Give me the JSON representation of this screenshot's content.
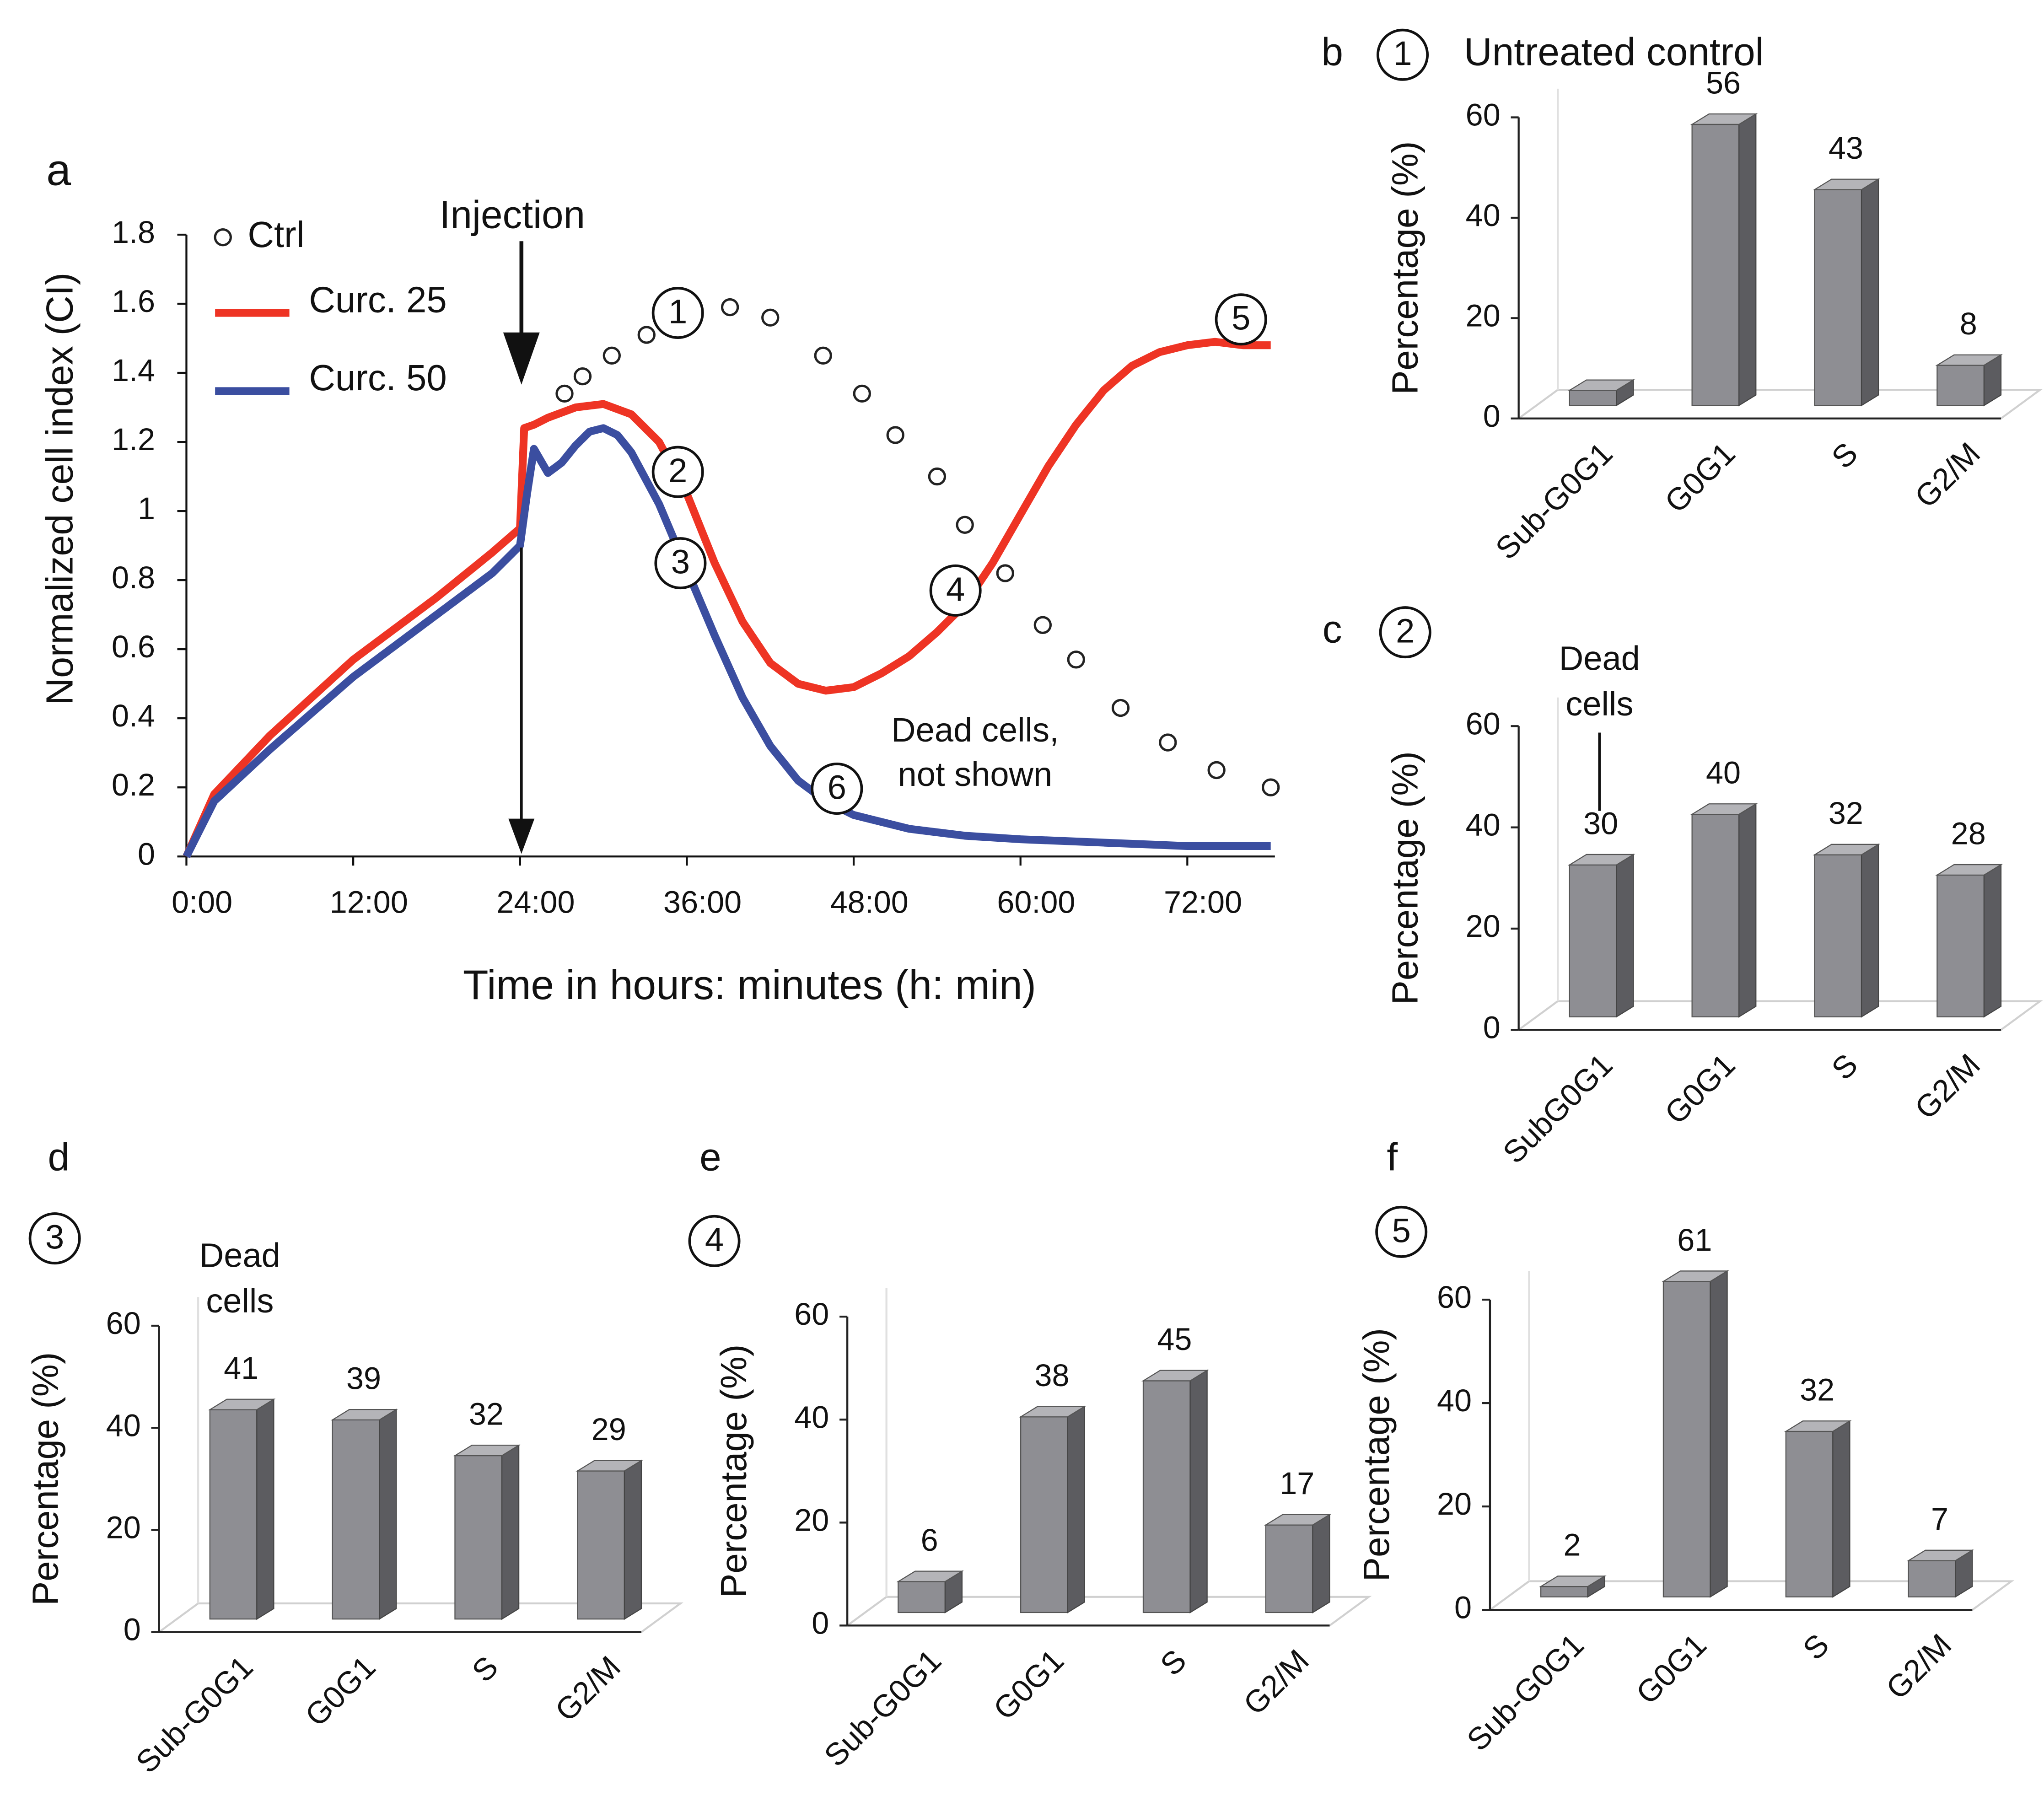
{
  "chart_data": [
    {
      "type": "line",
      "panel": "a",
      "xlabel": "Time in hours: minutes (h: min)",
      "ylabel": "Normalized cell index (CI)",
      "xlim": [
        0,
        78.3
      ],
      "ylim": [
        0,
        1.8
      ],
      "xticks": [
        {
          "value": 0,
          "label": "0:00"
        },
        {
          "value": 12,
          "label": "12:00"
        },
        {
          "value": 24,
          "label": "24:00"
        },
        {
          "value": 36,
          "label": "36:00"
        },
        {
          "value": 48,
          "label": "48:00"
        },
        {
          "value": 60,
          "label": "60:00"
        },
        {
          "value": 72,
          "label": "72:00"
        }
      ],
      "yticks": [
        0,
        0.2,
        0.4,
        0.6,
        0.8,
        1,
        1.2,
        1.4,
        1.6,
        1.8
      ],
      "legend": "upper left",
      "series": [
        {
          "name": "Ctrl",
          "color": "#222222",
          "marker": "circle-open",
          "x": [
            27.2,
            28.5,
            30.6,
            33.1,
            39.1,
            42.0,
            45.8,
            48.6,
            51.0,
            54.0,
            56.0,
            58.9,
            61.6,
            64.0,
            67.2,
            70.6,
            74.1,
            78.0
          ],
          "values": [
            1.34,
            1.39,
            1.45,
            1.51,
            1.59,
            1.56,
            1.45,
            1.34,
            1.22,
            1.1,
            0.96,
            0.82,
            0.67,
            0.57,
            0.43,
            0.33,
            0.25,
            0.2
          ]
        },
        {
          "name": "Curc. 25",
          "color": "#ee3424",
          "x": [
            0,
            2,
            6,
            12,
            18,
            22,
            24,
            24.3,
            25,
            26,
            28,
            30,
            32,
            34,
            36,
            38,
            40,
            42,
            44,
            46,
            48,
            50,
            52,
            54,
            56,
            58,
            60,
            62,
            64,
            66,
            68,
            70,
            72,
            74,
            76,
            78
          ],
          "values": [
            0,
            0.18,
            0.35,
            0.57,
            0.75,
            0.88,
            0.95,
            1.24,
            1.25,
            1.27,
            1.3,
            1.31,
            1.28,
            1.2,
            1.05,
            0.85,
            0.68,
            0.56,
            0.5,
            0.48,
            0.49,
            0.53,
            0.58,
            0.65,
            0.73,
            0.85,
            0.99,
            1.13,
            1.25,
            1.35,
            1.42,
            1.46,
            1.48,
            1.49,
            1.48,
            1.48
          ]
        },
        {
          "name": "Curc. 50",
          "color": "#3b4ea0",
          "x": [
            0,
            2,
            6,
            12,
            18,
            22,
            24,
            24.5,
            25,
            26,
            27,
            28,
            29,
            30,
            31,
            32,
            34,
            36,
            38,
            40,
            42,
            44,
            46,
            48,
            52,
            56,
            60,
            66,
            72,
            78
          ],
          "values": [
            0,
            0.16,
            0.31,
            0.52,
            0.7,
            0.82,
            0.9,
            1.05,
            1.18,
            1.11,
            1.14,
            1.19,
            1.23,
            1.24,
            1.22,
            1.17,
            1.02,
            0.83,
            0.64,
            0.46,
            0.32,
            0.22,
            0.16,
            0.12,
            0.08,
            0.06,
            0.05,
            0.04,
            0.03,
            0.03
          ]
        }
      ],
      "injection": "Injection",
      "markers": [
        "1",
        "2",
        "3",
        "4",
        "5",
        "6"
      ],
      "annotation": [
        "Dead cells,",
        "not shown"
      ]
    },
    {
      "type": "bar3d",
      "panel": "b",
      "marker": "1",
      "title": "Untreated control",
      "ylabel": "Percentage (%)",
      "categories": [
        "Sub-G0G1",
        "G0G1",
        "S",
        "G2/M"
      ],
      "values": [
        3,
        56,
        43,
        8
      ],
      "labeled": [
        false,
        true,
        true,
        true
      ],
      "ylim": [
        0,
        60
      ],
      "yticks": [
        0,
        20,
        40,
        60
      ],
      "color": "#8e8e93"
    },
    {
      "type": "bar3d",
      "panel": "c",
      "marker": "2",
      "ylabel": "Percentage (%)",
      "annotation": [
        "Dead",
        "cells"
      ],
      "categories": [
        "SubG0G1",
        "G0G1",
        "S",
        "G2/M"
      ],
      "values": [
        30,
        40,
        32,
        28
      ],
      "labeled": [
        true,
        true,
        true,
        true
      ],
      "ylim": [
        0,
        60
      ],
      "yticks": [
        0,
        20,
        40,
        60
      ],
      "color": "#8e8e93"
    },
    {
      "type": "bar3d",
      "panel": "d",
      "marker": "3",
      "ylabel": "Percentage (%)",
      "annotation": [
        "Dead",
        "cells"
      ],
      "categories": [
        "Sub-G0G1",
        "G0G1",
        "S",
        "G2/M"
      ],
      "values": [
        41,
        39,
        32,
        29
      ],
      "labeled": [
        true,
        true,
        true,
        true
      ],
      "ylim": [
        0,
        60
      ],
      "yticks": [
        0,
        20,
        40,
        60
      ],
      "color": "#8e8e93"
    },
    {
      "type": "bar3d",
      "panel": "e",
      "marker": "4",
      "ylabel": "Percentage (%)",
      "categories": [
        "Sub-G0G1",
        "G0G1",
        "S",
        "G2/M"
      ],
      "values": [
        6,
        38,
        45,
        17
      ],
      "labeled": [
        true,
        true,
        true,
        true
      ],
      "ylim": [
        0,
        60
      ],
      "yticks": [
        0,
        20,
        40,
        60
      ],
      "color": "#8e8e93"
    },
    {
      "type": "bar3d",
      "panel": "f",
      "marker": "5",
      "ylabel": "Percentage (%)",
      "categories": [
        "Sub-G0G1",
        "G0G1",
        "S",
        "G2/M"
      ],
      "values": [
        2,
        61,
        32,
        7
      ],
      "labeled": [
        true,
        true,
        true,
        true
      ],
      "ylim": [
        0,
        60
      ],
      "yticks": [
        0,
        20,
        40,
        60
      ],
      "color": "#8e8e93"
    }
  ]
}
